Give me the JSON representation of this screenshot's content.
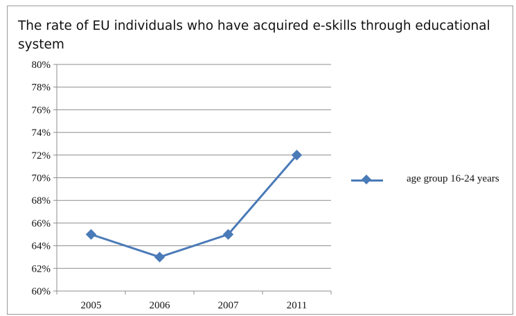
{
  "chart_data": {
    "type": "line",
    "title": "The rate of EU individuals who have acquired e-skills through educational system",
    "categories": [
      "2005",
      "2006",
      "2007",
      "2011"
    ],
    "series": [
      {
        "name": "age group 16-24 years",
        "values": [
          65,
          63,
          65,
          72
        ],
        "color": "#4a7ab8",
        "marker": "diamond"
      }
    ],
    "ylim": [
      60,
      80
    ],
    "yticks": [
      "60%",
      "62%",
      "64%",
      "66%",
      "68%",
      "70%",
      "72%",
      "74%",
      "76%",
      "78%",
      "80%"
    ],
    "xlabel": "",
    "ylabel": "",
    "grid": true,
    "legend_position": "right"
  }
}
